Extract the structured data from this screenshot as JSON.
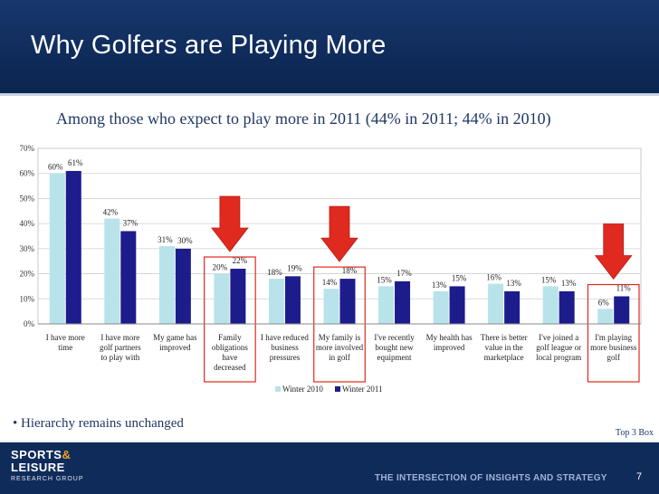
{
  "header": {
    "title": "Why Golfers are Playing More"
  },
  "footer": {
    "logo_line1": "SPORTS",
    "logo_amp": "&",
    "logo_line2": "LEISURE",
    "logo_line3": "RESEARCH GROUP",
    "tagline": "THE INTERSECTION OF INSIGHTS AND STRATEGY",
    "page_number": "7"
  },
  "bullet": "• Hierarchy remains unchanged",
  "note": "Top 3 Box",
  "colors": {
    "series1": "#b8e3ea",
    "series2": "#1c1c8c",
    "highlight": "#e0291f",
    "text": "#1f3864"
  },
  "chart_data": {
    "type": "bar",
    "title": "Among those who expect to play more in 2011 (44% in 2011; 44% in 2010)",
    "ylim": [
      0,
      70
    ],
    "yticks": [
      "0%",
      "10%",
      "20%",
      "30%",
      "40%",
      "50%",
      "60%",
      "70%"
    ],
    "categories": [
      [
        "I have more",
        "time"
      ],
      [
        "I have more",
        "golf partners",
        "to play with"
      ],
      [
        "My game has",
        "improved"
      ],
      [
        "Family",
        "obligations",
        "have",
        "decreased"
      ],
      [
        "I have reduced",
        "business",
        "pressures"
      ],
      [
        "My family is",
        "more involved",
        "in golf"
      ],
      [
        "I've recently",
        "bought new",
        "equipment"
      ],
      [
        "My health has",
        "improved"
      ],
      [
        "There is better",
        "value in the",
        "marketplace"
      ],
      [
        "I've joined a",
        "golf league or",
        "local program"
      ],
      [
        "I'm playing",
        "more business",
        "golf"
      ]
    ],
    "series": [
      {
        "name": "Winter 2010",
        "values": [
          60,
          42,
          31,
          20,
          18,
          14,
          15,
          13,
          16,
          15,
          6
        ],
        "labels": [
          "60%",
          "42%",
          "31%",
          "20%",
          "18%",
          "14%",
          "15%",
          "13%",
          "16%",
          "15%",
          "6%"
        ]
      },
      {
        "name": "Winter 2011",
        "values": [
          61,
          37,
          30,
          22,
          19,
          18,
          17,
          15,
          13,
          13,
          11
        ],
        "labels": [
          "61%",
          "37%",
          "30%",
          "22%",
          "19%",
          "18%",
          "17%",
          "15%",
          "13%",
          "13%",
          "11%"
        ]
      }
    ],
    "highlighted_categories": [
      3,
      5,
      10
    ],
    "legend": "bottom"
  }
}
